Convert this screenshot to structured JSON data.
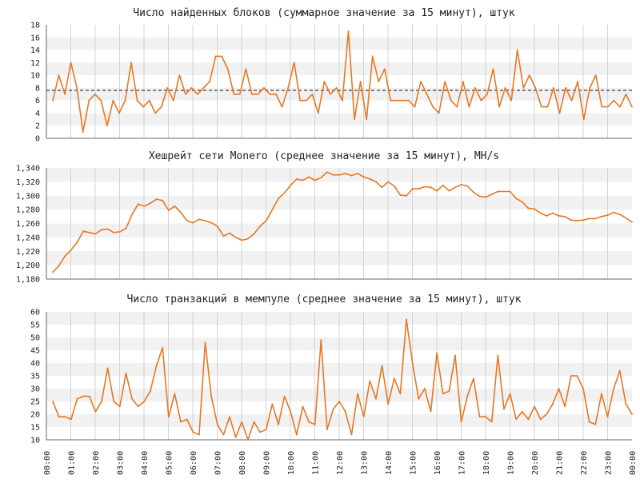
{
  "chart_data": [
    {
      "type": "line",
      "title": "Число найденных блоков (суммарное значение за 15 минут), штук",
      "ylim": [
        0,
        18
      ],
      "yticks": [
        "0",
        "2",
        "4",
        "6",
        "8",
        "10",
        "12",
        "14",
        "16",
        "18"
      ],
      "reference_line": 7.6,
      "grid": "horizontal bands, vertical hour lines",
      "series": [
        {
          "color": "#e87722",
          "values": [
            6,
            10,
            7,
            12,
            8,
            1,
            6,
            7,
            6,
            2,
            6,
            4,
            6,
            12,
            6,
            5,
            6,
            4,
            5,
            8,
            6,
            10,
            7,
            8,
            7,
            8,
            9,
            13,
            13,
            11,
            7,
            7,
            11,
            7,
            7,
            8,
            7,
            7,
            5,
            8,
            12,
            6,
            6,
            7,
            4,
            9,
            7,
            8,
            6,
            17,
            3,
            9,
            3,
            13,
            9,
            11,
            6,
            6,
            6,
            6,
            5,
            9,
            7,
            5,
            4,
            9,
            6,
            5,
            9,
            5,
            8,
            6,
            7,
            11,
            5,
            8,
            6,
            14,
            8,
            10,
            8,
            5,
            5,
            8,
            4,
            8,
            6,
            9,
            3,
            8,
            10,
            5,
            5,
            6,
            5,
            7,
            5
          ]
        }
      ]
    },
    {
      "type": "line",
      "title": "Хешрейт сети Monero (среднее значение за 15 минут), MH/s",
      "ylim": [
        1180,
        1340
      ],
      "yticks": [
        "1,180",
        "1,200",
        "1,220",
        "1,240",
        "1,260",
        "1,280",
        "1,300",
        "1,320",
        "1,340"
      ],
      "grid": "horizontal bands, vertical hour lines",
      "series": [
        {
          "color": "#e87722",
          "values": [
            1190,
            1199,
            1213,
            1222,
            1233,
            1249,
            1247,
            1245,
            1251,
            1252,
            1247,
            1248,
            1253,
            1273,
            1288,
            1285,
            1289,
            1295,
            1293,
            1279,
            1285,
            1276,
            1264,
            1261,
            1266,
            1264,
            1261,
            1256,
            1242,
            1246,
            1240,
            1236,
            1238,
            1245,
            1256,
            1264,
            1280,
            1296,
            1304,
            1315,
            1324,
            1322,
            1327,
            1322,
            1326,
            1334,
            1330,
            1330,
            1332,
            1329,
            1332,
            1327,
            1324,
            1320,
            1312,
            1320,
            1314,
            1301,
            1300,
            1310,
            1310,
            1313,
            1312,
            1307,
            1315,
            1307,
            1312,
            1316,
            1314,
            1305,
            1299,
            1298,
            1302,
            1306,
            1306,
            1306,
            1296,
            1291,
            1282,
            1281,
            1275,
            1271,
            1275,
            1271,
            1270,
            1265,
            1264,
            1265,
            1267,
            1267,
            1270,
            1272,
            1276,
            1273,
            1268,
            1262
          ]
        }
      ]
    },
    {
      "type": "line",
      "title": "Число транзакций в мемпуле (среднее значение за 15 минут), штук",
      "ylim": [
        10,
        60
      ],
      "yticks": [
        "10",
        "15",
        "20",
        "25",
        "30",
        "35",
        "40",
        "45",
        "50",
        "55",
        "60"
      ],
      "grid": "horizontal bands, vertical hour lines",
      "series": [
        {
          "color": "#e87722",
          "values": [
            25,
            19,
            19,
            18,
            26,
            27,
            27,
            21,
            25,
            38,
            25,
            23,
            36,
            26,
            23,
            25,
            29,
            39,
            46,
            19,
            28,
            17,
            18,
            13,
            12,
            48,
            27,
            16,
            12,
            19,
            11,
            17,
            10,
            17,
            13,
            14,
            24,
            16,
            27,
            21,
            12,
            23,
            17,
            16,
            49,
            14,
            22,
            25,
            21,
            12,
            28,
            19,
            33,
            26,
            39,
            24,
            34,
            28,
            57,
            40,
            26,
            30,
            21,
            44,
            28,
            29,
            43,
            17,
            27,
            34,
            19,
            19,
            17,
            43,
            22,
            28,
            18,
            21,
            18,
            23,
            18,
            20,
            24,
            30,
            23,
            35,
            35,
            30,
            17,
            16,
            28,
            19,
            30,
            37,
            24,
            20
          ]
        }
      ]
    }
  ],
  "x_axis": {
    "labels": [
      "00:00",
      "01:00",
      "02:00",
      "03:00",
      "04:00",
      "05:00",
      "06:00",
      "07:00",
      "08:00",
      "09:00",
      "10:00",
      "11:00",
      "12:00",
      "13:00",
      "14:00",
      "15:00",
      "16:00",
      "17:00",
      "18:00",
      "19:00",
      "20:00",
      "21:00",
      "22:00",
      "23:00",
      "00:00"
    ]
  },
  "colors": {
    "line": "#e87722",
    "band": "#f1f1f1",
    "grid": "#d4d4d4",
    "axis": "#666666"
  }
}
